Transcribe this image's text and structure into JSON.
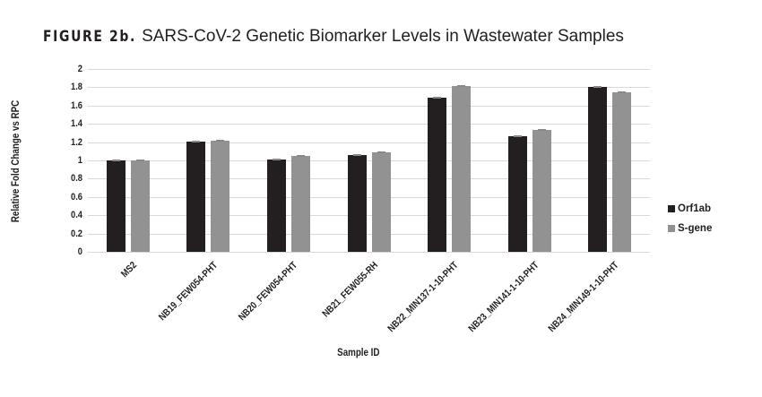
{
  "figure": {
    "label": "FIGURE 2b.",
    "title": "SARS-CoV-2 Genetic Biomarker Levels in Wastewater Samples"
  },
  "colors": {
    "Orf1ab": "#231f20",
    "S-gene": "#929292",
    "grid": "#d9d9d9",
    "error_bar": "#888888"
  },
  "chart_data": {
    "type": "bar",
    "title": "SARS-CoV-2 Genetic Biomarker Levels in Wastewater Samples",
    "xlabel": "Sample ID",
    "ylabel": "Relative Fold Change vs RPC",
    "ylim": [
      0,
      2
    ],
    "yticks": [
      "0",
      "0.2",
      "0.4",
      "0.6",
      "0.8",
      "1",
      "1.2",
      "1.4",
      "1.6",
      "1.8",
      "2"
    ],
    "grid": true,
    "legend_position": "right",
    "categories": [
      "MS2",
      "NB19_FEW054-PHT",
      "NB20_FEW054-PHT",
      "NB21_FEW055-RH",
      "NB22_MIN137-1-10-PHT",
      "NB23_MIN141-1-10-PHT",
      "NB24_MIN149-1-10-PHT"
    ],
    "series": [
      {
        "name": "Orf1ab",
        "values": [
          1.0,
          1.21,
          1.01,
          1.06,
          1.69,
          1.26,
          1.8
        ]
      },
      {
        "name": "S-gene",
        "values": [
          1.0,
          1.22,
          1.05,
          1.09,
          1.81,
          1.33,
          1.75
        ]
      }
    ]
  }
}
